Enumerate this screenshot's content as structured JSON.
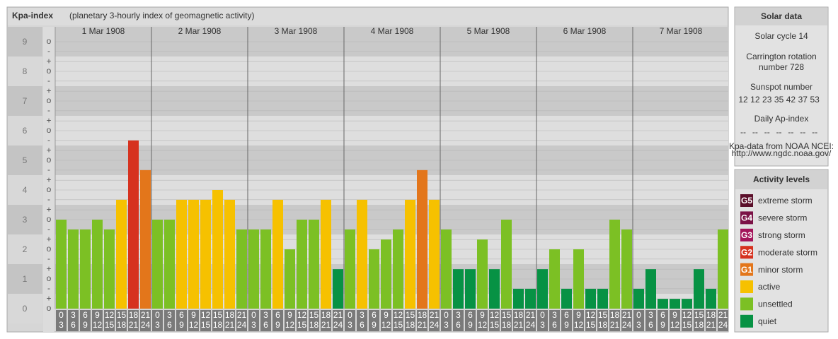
{
  "chart_data": {
    "type": "bar",
    "title": "Kpa-index",
    "subtitle": "(planetary 3-hourly index of geomagnetic activity)",
    "ylim": [
      0,
      9.5
    ],
    "yticks": [
      0,
      1,
      2,
      3,
      4,
      5,
      6,
      7,
      8,
      9
    ],
    "minor_ticks": [
      {
        "value": 0,
        "label": "o"
      },
      {
        "value": 0.33,
        "label": "+"
      },
      {
        "value": 0.67,
        "label": "-"
      },
      {
        "value": 1,
        "label": "o"
      },
      {
        "value": 1.33,
        "label": "+"
      },
      {
        "value": 1.67,
        "label": "-"
      },
      {
        "value": 2,
        "label": "o"
      },
      {
        "value": 2.33,
        "label": "+"
      },
      {
        "value": 2.67,
        "label": "-"
      },
      {
        "value": 3,
        "label": "o"
      },
      {
        "value": 3.33,
        "label": "+"
      },
      {
        "value": 3.67,
        "label": "-"
      },
      {
        "value": 4,
        "label": "o"
      },
      {
        "value": 4.33,
        "label": "+"
      },
      {
        "value": 4.67,
        "label": "-"
      },
      {
        "value": 5,
        "label": "o"
      },
      {
        "value": 5.33,
        "label": "+"
      },
      {
        "value": 5.67,
        "label": "-"
      },
      {
        "value": 6,
        "label": "o"
      },
      {
        "value": 6.33,
        "label": "+"
      },
      {
        "value": 6.67,
        "label": "-"
      },
      {
        "value": 7,
        "label": "o"
      },
      {
        "value": 7.33,
        "label": "+"
      },
      {
        "value": 7.67,
        "label": "-"
      },
      {
        "value": 8,
        "label": "o"
      },
      {
        "value": 8.33,
        "label": "+"
      },
      {
        "value": 8.67,
        "label": "-"
      },
      {
        "value": 9,
        "label": "o"
      }
    ],
    "hour_ranges": [
      {
        "from": "0",
        "to": "3"
      },
      {
        "from": "3",
        "to": "6"
      },
      {
        "from": "6",
        "to": "9"
      },
      {
        "from": "9",
        "to": "12"
      },
      {
        "from": "12",
        "to": "15"
      },
      {
        "from": "15",
        "to": "18"
      },
      {
        "from": "18",
        "to": "21"
      },
      {
        "from": "21",
        "to": "24"
      }
    ],
    "days": [
      {
        "date": "1 Mar 1908",
        "values": [
          3,
          2.67,
          2.67,
          3,
          2.67,
          3.67,
          5.67,
          4.67
        ],
        "colors": [
          "#7cc024",
          "#7cc024",
          "#7cc024",
          "#7cc024",
          "#7cc024",
          "#f6c100",
          "#d6321f",
          "#e3761b"
        ]
      },
      {
        "date": "2 Mar 1908",
        "values": [
          3,
          3,
          3.67,
          3.67,
          3.67,
          4,
          3.67,
          2.67
        ],
        "colors": [
          "#7cc024",
          "#7cc024",
          "#f6c100",
          "#f6c100",
          "#f6c100",
          "#f6c100",
          "#f6c100",
          "#7cc024"
        ]
      },
      {
        "date": "3 Mar 1908",
        "values": [
          2.67,
          2.67,
          3.67,
          2,
          3,
          3,
          3.67,
          1.33
        ],
        "colors": [
          "#7cc024",
          "#7cc024",
          "#f6c100",
          "#7cc024",
          "#7cc024",
          "#7cc024",
          "#f6c100",
          "#079244"
        ]
      },
      {
        "date": "4 Mar 1908",
        "values": [
          2.67,
          3.67,
          2,
          2.33,
          2.67,
          3.67,
          4.67,
          3.67
        ],
        "colors": [
          "#7cc024",
          "#f6c100",
          "#7cc024",
          "#7cc024",
          "#7cc024",
          "#f6c100",
          "#e3761b",
          "#f6c100"
        ]
      },
      {
        "date": "5 Mar 1908",
        "values": [
          2.67,
          1.33,
          1.33,
          2.33,
          1.33,
          3,
          0.67,
          0.67
        ],
        "colors": [
          "#7cc024",
          "#079244",
          "#079244",
          "#7cc024",
          "#079244",
          "#7cc024",
          "#079244",
          "#079244"
        ]
      },
      {
        "date": "6 Mar 1908",
        "values": [
          1.33,
          2,
          0.67,
          2,
          0.67,
          0.67,
          3,
          2.67
        ],
        "colors": [
          "#079244",
          "#7cc024",
          "#079244",
          "#7cc024",
          "#079244",
          "#079244",
          "#7cc024",
          "#7cc024"
        ]
      },
      {
        "date": "7 Mar 1908",
        "values": [
          0.67,
          1.33,
          0.33,
          0.33,
          0.33,
          1.33,
          0.67,
          2.67
        ],
        "colors": [
          "#079244",
          "#079244",
          "#079244",
          "#079244",
          "#079244",
          "#079244",
          "#079244",
          "#7cc024"
        ]
      }
    ]
  },
  "solar_data": {
    "title": "Solar data",
    "cycle": "Solar cycle 14",
    "carrington": [
      "Carrington rotation",
      "number 728"
    ],
    "sunspot_label": "Sunspot number",
    "sunspot_numbers": [
      12,
      12,
      23,
      35,
      42,
      37,
      53
    ],
    "ap_label": "Daily Ap-index",
    "ap_values": [
      "--",
      "--",
      "--",
      "--",
      "--",
      "--",
      "--"
    ],
    "source": [
      "Kpa-data from NOAA NCEI:",
      "http://www.ngdc.noaa.gov/"
    ]
  },
  "activity_levels": {
    "title": "Activity levels",
    "items": [
      {
        "badge": "G5",
        "name": "extreme storm",
        "color": "#5b0f2a"
      },
      {
        "badge": "G4",
        "name": "severe storm",
        "color": "#7b1246"
      },
      {
        "badge": "G3",
        "name": "strong storm",
        "color": "#a3145a"
      },
      {
        "badge": "G2",
        "name": "moderate storm",
        "color": "#d6321f"
      },
      {
        "badge": "G1",
        "name": "minor storm",
        "color": "#e3761b"
      },
      {
        "name": "active",
        "color": "#f6c100"
      },
      {
        "name": "unsettled",
        "color": "#7cc024"
      },
      {
        "name": "quiet",
        "color": "#079244"
      }
    ]
  }
}
